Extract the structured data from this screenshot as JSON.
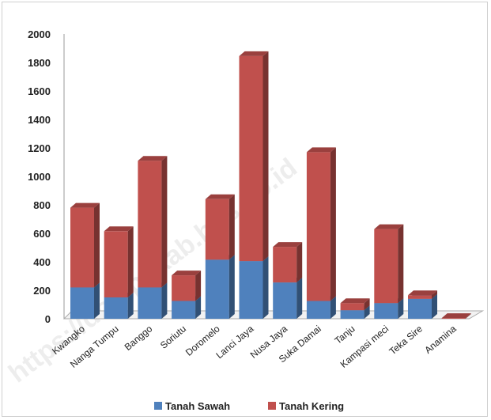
{
  "watermark": "https://dompukab.bps.go.id",
  "chart_data": {
    "type": "bar",
    "stacked": true,
    "three_d": true,
    "categories": [
      "Kwangko",
      "Nanga Tumpu",
      "Banggo",
      "Soriutu",
      "Doromelo",
      "Lanci Jaya",
      "Nusa Jaya",
      "Suka Damai",
      "Tanju",
      "Kampasi meci",
      "Teka Sire",
      "Anamina"
    ],
    "series": [
      {
        "name": "Tanah Sawah",
        "color": "#4F81BD",
        "values": [
          220,
          150,
          220,
          125,
          415,
          405,
          255,
          125,
          60,
          110,
          140,
          0
        ]
      },
      {
        "name": "Tanah Kering",
        "color": "#C0504D",
        "values": [
          560,
          465,
          890,
          180,
          425,
          1440,
          250,
          1045,
          50,
          520,
          25,
          5
        ]
      }
    ],
    "ylim": [
      0,
      2000
    ],
    "yticks": [
      "0",
      "200",
      "400",
      "600",
      "800",
      "1000",
      "1200",
      "1400",
      "1600",
      "1800",
      "2000"
    ],
    "legend_position": "bottom",
    "grid": false
  }
}
